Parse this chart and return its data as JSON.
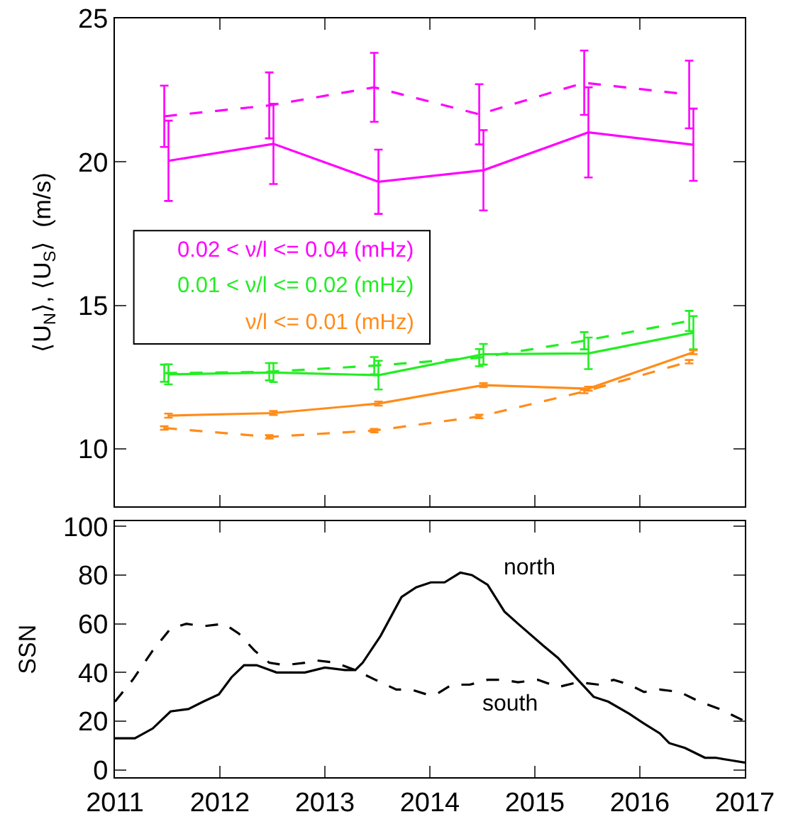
{
  "chart_data": [
    {
      "type": "line",
      "ylabel": "⟨U$_{N}$⟩, ⟨U$_{S}$⟩  (m/s)",
      "xlim": [
        2011,
        2017
      ],
      "xticks": [
        2011,
        2012,
        2013,
        2014,
        2015,
        2016,
        2017
      ],
      "ylim": [
        8,
        25
      ],
      "yticks": [
        10,
        15,
        20,
        25
      ],
      "tick_labels": "y",
      "legend": "left",
      "marker": "none",
      "series": [
        {
          "name": "0.02 < ν/l <= 0.04 (mHz)",
          "color": "#ff00ff",
          "line_style": "solid",
          "x": [
            2011.51,
            2012.51,
            2013.51,
            2014.51,
            2015.51,
            2016.51
          ],
          "values": [
            20.04,
            20.63,
            19.31,
            19.71,
            21.03,
            20.6
          ],
          "errors": [
            1.4,
            1.4,
            1.12,
            1.4,
            1.57,
            1.26
          ]
        },
        {
          "color": "#ff00ff",
          "line_style": "dashed",
          "x": [
            2011.47,
            2012.47,
            2013.47,
            2014.47,
            2015.47,
            2016.47
          ],
          "values": [
            21.59,
            21.97,
            22.6,
            21.66,
            22.76,
            22.35
          ],
          "errors": [
            1.07,
            1.15,
            1.2,
            1.05,
            1.12,
            1.18
          ]
        },
        {
          "name": "0.01 < ν/l <= 0.02 (mHz)",
          "color": "#22ee22",
          "line_style": "solid",
          "x": [
            2011.51,
            2012.51,
            2013.51,
            2014.51,
            2015.51,
            2016.51
          ],
          "values": [
            12.6,
            12.66,
            12.57,
            13.3,
            13.33,
            14.05
          ],
          "errors": [
            0.35,
            0.33,
            0.5,
            0.36,
            0.55,
            0.58
          ]
        },
        {
          "color": "#22ee22",
          "line_style": "dashed",
          "x": [
            2011.47,
            2012.47,
            2013.47,
            2014.47,
            2015.47,
            2016.47
          ],
          "values": [
            12.64,
            12.69,
            12.9,
            13.18,
            13.77,
            14.46
          ],
          "errors": [
            0.3,
            0.3,
            0.3,
            0.3,
            0.3,
            0.35
          ]
        },
        {
          "name": "ν/l <= 0.01 (mHz)",
          "color": "#ff8c1a",
          "line_style": "solid",
          "x": [
            2011.51,
            2012.51,
            2013.51,
            2014.51,
            2015.51,
            2016.51
          ],
          "values": [
            11.16,
            11.25,
            11.58,
            12.22,
            12.1,
            13.37
          ],
          "errors": [
            0.07,
            0.07,
            0.07,
            0.07,
            0.07,
            0.07
          ]
        },
        {
          "color": "#ff8c1a",
          "line_style": "dashed",
          "x": [
            2011.47,
            2012.47,
            2013.47,
            2014.47,
            2015.47,
            2016.47
          ],
          "values": [
            10.73,
            10.42,
            10.64,
            11.13,
            12.0,
            13.04
          ],
          "errors": [
            0.06,
            0.06,
            0.06,
            0.06,
            0.06,
            0.06
          ]
        }
      ]
    },
    {
      "type": "line",
      "ylabel": "SSN",
      "xlim": [
        2011,
        2017
      ],
      "xticks": [
        2011,
        2012,
        2013,
        2014,
        2015,
        2016,
        2017
      ],
      "ylim": [
        -3,
        102
      ],
      "yticks": [
        0,
        20,
        40,
        60,
        80,
        100
      ],
      "marker": "none",
      "annotations": [
        "north",
        "south"
      ],
      "series": [
        {
          "color": "#000000",
          "line_style": "solid",
          "x": [
            2011.0,
            2011.19,
            2011.36,
            2011.53,
            2011.7,
            2011.84,
            2011.99,
            2012.11,
            2012.23,
            2012.35,
            2012.54,
            2012.66,
            2012.81,
            2013.0,
            2013.19,
            2013.29,
            2013.36,
            2013.53,
            2013.73,
            2013.87,
            2014.01,
            2014.14,
            2014.29,
            2014.4,
            2014.55,
            2014.71,
            2014.84,
            2015.08,
            2015.22,
            2015.41,
            2015.56,
            2015.7,
            2015.9,
            2016.04,
            2016.19,
            2016.28,
            2016.43,
            2016.62,
            2016.72,
            2016.86,
            2017.0
          ],
          "values": [
            13,
            13,
            17,
            24,
            25,
            28,
            31,
            38,
            43,
            43,
            40,
            40,
            40,
            42,
            41,
            41,
            44,
            55,
            71,
            75,
            77,
            77,
            81,
            80,
            76,
            65,
            60,
            51,
            46,
            37,
            30,
            28,
            23,
            19,
            15,
            11,
            9,
            5,
            5,
            4,
            3
          ]
        },
        {
          "color": "#000000",
          "line_style": "dashed",
          "x": [
            2011.0,
            2011.17,
            2011.36,
            2011.53,
            2011.68,
            2011.84,
            2012.04,
            2012.18,
            2012.33,
            2012.47,
            2012.62,
            2012.81,
            2012.91,
            2013.1,
            2013.29,
            2013.48,
            2013.68,
            2013.82,
            2013.97,
            2014.06,
            2014.21,
            2014.38,
            2014.55,
            2014.69,
            2014.84,
            2015.03,
            2015.22,
            2015.41,
            2015.61,
            2015.75,
            2015.9,
            2016.04,
            2016.19,
            2016.38,
            2016.57,
            2016.76,
            2017.0
          ],
          "values": [
            28,
            37,
            49,
            58,
            60,
            59,
            60,
            56,
            49,
            44,
            43,
            44,
            45,
            44,
            41,
            37,
            33,
            33,
            31,
            31,
            35,
            35,
            37,
            37,
            36,
            37,
            34,
            36,
            35,
            37,
            35,
            32,
            33,
            32,
            28,
            25,
            20
          ]
        }
      ]
    }
  ]
}
